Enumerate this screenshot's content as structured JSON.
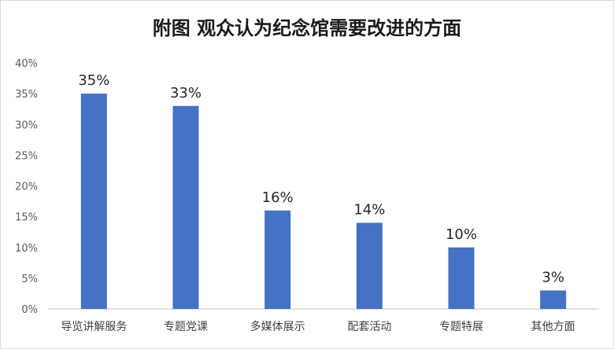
{
  "chart_data": {
    "type": "bar",
    "title": "附图  观众认为纪念馆需要改进的方面",
    "xlabel": "",
    "ylabel": "",
    "categories": [
      "导览讲解服务",
      "专题党课",
      "多媒体展示",
      "配套活动",
      "专题特展",
      "其他方面"
    ],
    "values": [
      35,
      33,
      16,
      14,
      10,
      3
    ],
    "value_labels": [
      "35%",
      "33%",
      "16%",
      "14%",
      "10%",
      "3%"
    ],
    "ylim": [
      0,
      40
    ],
    "yticks": [
      0,
      5,
      10,
      15,
      20,
      25,
      30,
      35,
      40
    ],
    "ytick_labels": [
      "0%",
      "5%",
      "10%",
      "15%",
      "20%",
      "25%",
      "30%",
      "35%",
      "40%"
    ],
    "grid": false,
    "legend": "none",
    "colors": {
      "bar": "#4472C4",
      "axis": "#BFBFBF",
      "background": "#FFFFFF"
    }
  }
}
